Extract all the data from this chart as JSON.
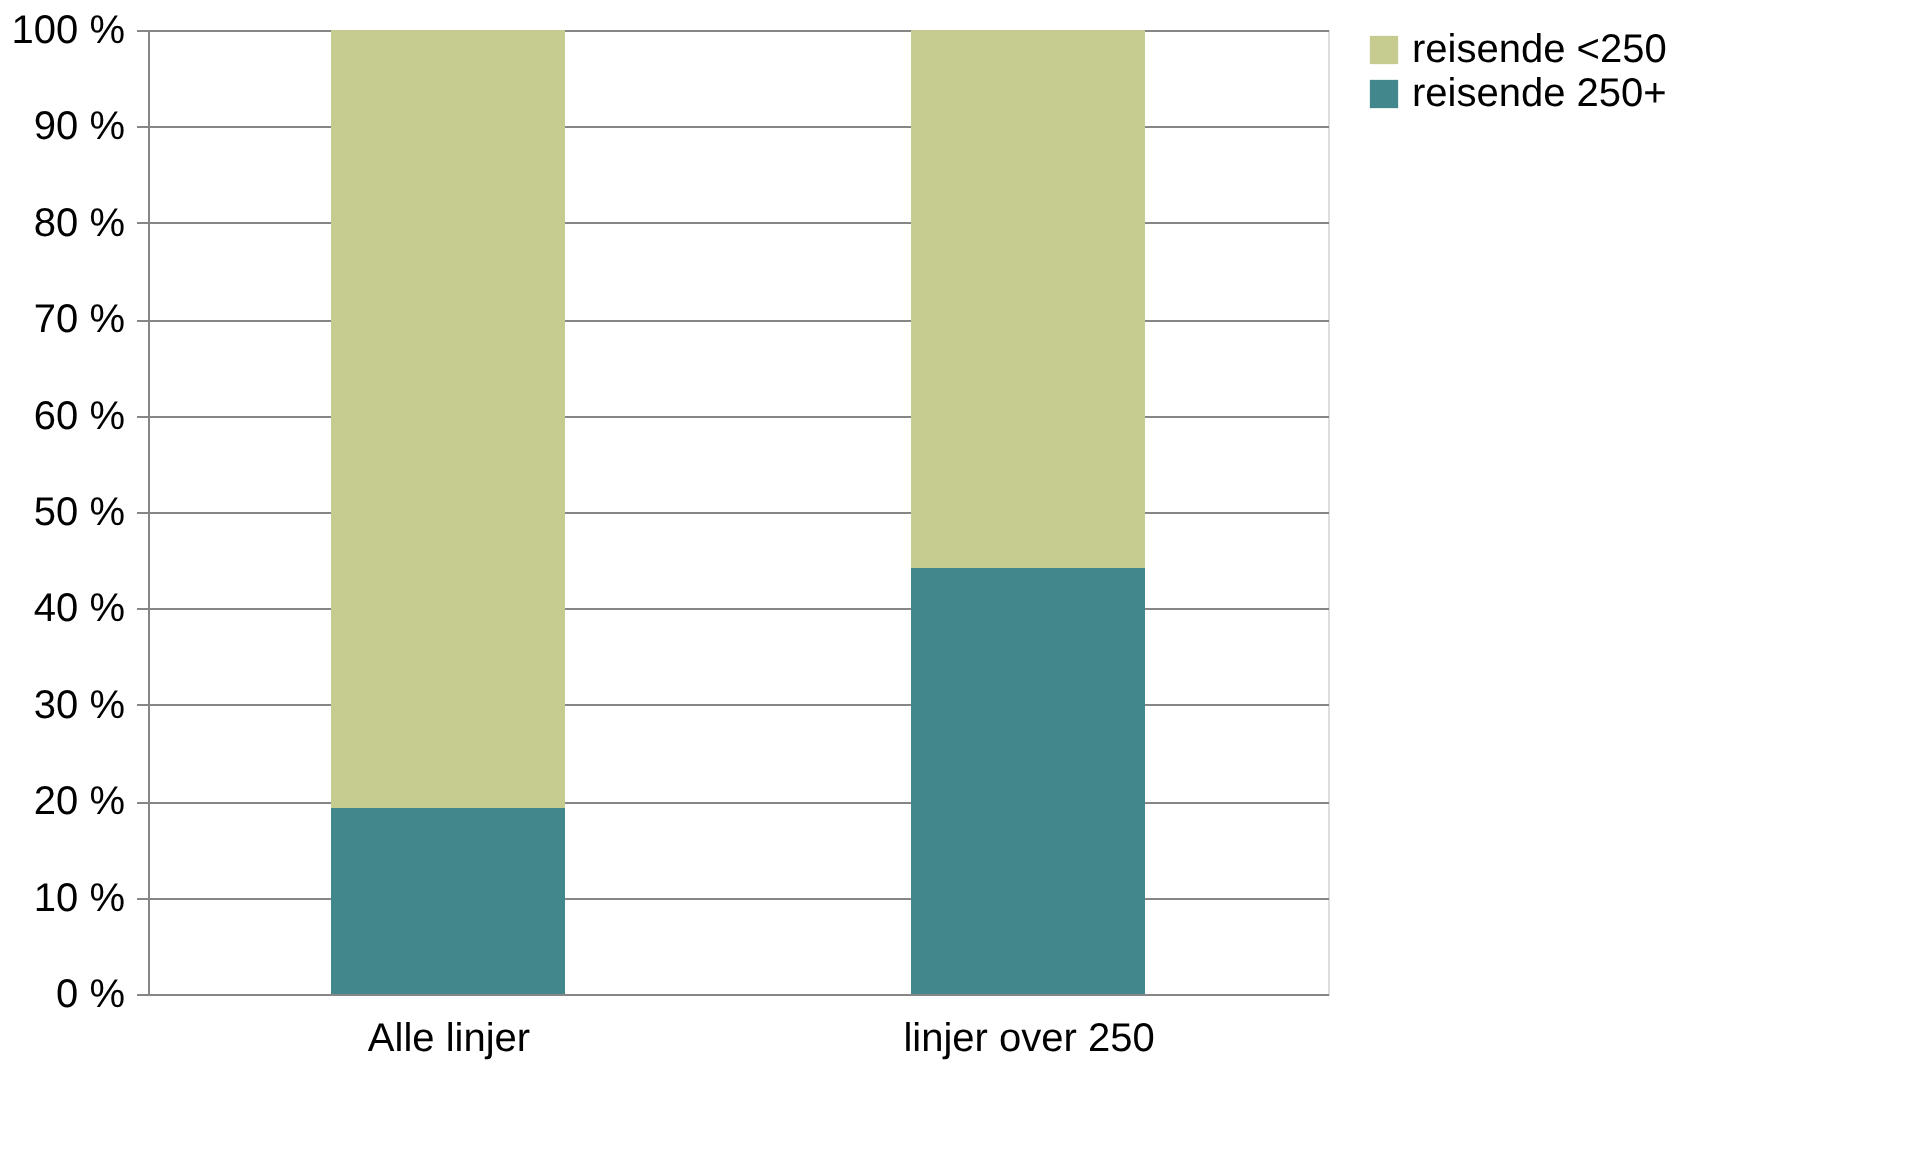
{
  "chart_data": {
    "type": "bar",
    "stacked": true,
    "categories": [
      "Alle linjer",
      "linjer over 250"
    ],
    "series": [
      {
        "name": "reisende 250+",
        "color": "#41878b",
        "values": [
          19.3,
          44.2
        ]
      },
      {
        "name": "reisende <250",
        "color": "#c6cc8f",
        "values": [
          80.7,
          55.8
        ]
      }
    ],
    "ylim": [
      0,
      100
    ],
    "yticks": [
      {
        "value": 0,
        "label": "0 %"
      },
      {
        "value": 10,
        "label": "10 %"
      },
      {
        "value": 20,
        "label": "20 %"
      },
      {
        "value": 30,
        "label": "30 %"
      },
      {
        "value": 40,
        "label": "40 %"
      },
      {
        "value": 50,
        "label": "50 %"
      },
      {
        "value": 60,
        "label": "60 %"
      },
      {
        "value": 70,
        "label": "70 %"
      },
      {
        "value": 80,
        "label": "80 %"
      },
      {
        "value": 90,
        "label": "90 %"
      },
      {
        "value": 100,
        "label": "100 %"
      }
    ],
    "grid": "y",
    "legend": "right"
  }
}
